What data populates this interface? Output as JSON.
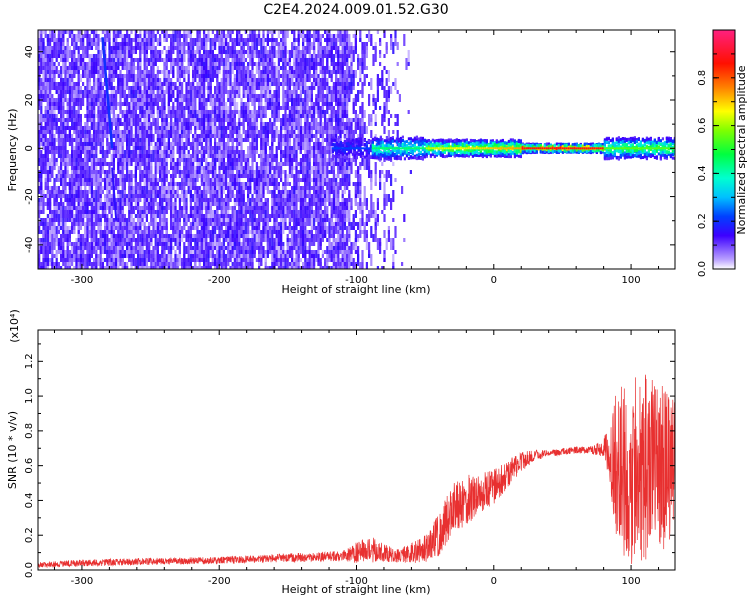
{
  "title": "C2E4.2024.009.01.52.G30",
  "chart_data": [
    {
      "type": "heatmap",
      "xlabel": "Height of straight line (km)",
      "ylabel": "Frequency (Hz)",
      "xlim": [
        -332,
        132
      ],
      "ylim": [
        -50,
        49
      ],
      "xticks": [
        -300,
        -200,
        -100,
        0,
        100
      ],
      "xtick_labels": [
        "-300",
        "-200",
        "-100",
        "0",
        "100"
      ],
      "yticks": [
        -40,
        -20,
        0,
        20,
        40
      ],
      "ytick_labels": [
        "-40",
        "-20",
        "0",
        "20",
        "40"
      ],
      "colorbar": {
        "label": "Normalized spectral amplitude",
        "range": [
          0,
          1
        ],
        "ticks": [
          0.0,
          0.2,
          0.4,
          0.6,
          0.8
        ],
        "tick_labels": [
          "0.0",
          "0.2",
          "0.4",
          "0.6",
          "0.8"
        ]
      },
      "features": {
        "broadband_noise_x": [
          -332,
          -105
        ],
        "fading_noise_x": [
          -105,
          -60
        ],
        "signal_line_frequency": 0,
        "signal_onset_x": -118,
        "strong_signal_x": [
          20,
          80
        ],
        "diagonal_streak": {
          "x": [
            -285,
            -278
          ],
          "y": [
            46,
            0
          ]
        }
      },
      "grid": false
    },
    {
      "type": "line",
      "xlabel": "Height of straight line (km)",
      "ylabel": "SNR (10 * v/v)",
      "y_multiplier": "(x10⁴)",
      "xlim": [
        -332,
        132
      ],
      "ylim": [
        0,
        1.38
      ],
      "xticks": [
        -300,
        -200,
        -100,
        0,
        100
      ],
      "xtick_labels": [
        "-300",
        "-200",
        "-100",
        "0",
        "100"
      ],
      "yticks": [
        0.0,
        0.2,
        0.4,
        0.6,
        0.8,
        1.0,
        1.2
      ],
      "ytick_labels": [
        "0.0",
        "0.2",
        "0.4",
        "0.6",
        "0.8",
        "1.0",
        "1.2"
      ],
      "series": [
        {
          "color": "#e83030",
          "x": [
            -332,
            -300,
            -250,
            -200,
            -150,
            -110,
            -100,
            -90,
            -80,
            -70,
            -60,
            -50,
            -40,
            -30,
            -20,
            -10,
            0,
            10,
            20,
            30,
            40,
            50,
            60,
            70,
            80,
            90,
            100,
            110,
            120,
            132
          ],
          "y": [
            0.03,
            0.04,
            0.05,
            0.055,
            0.07,
            0.08,
            0.1,
            0.12,
            0.1,
            0.08,
            0.1,
            0.12,
            0.2,
            0.35,
            0.4,
            0.45,
            0.48,
            0.55,
            0.62,
            0.66,
            0.67,
            0.68,
            0.69,
            0.69,
            0.7,
            0.6,
            0.55,
            0.6,
            0.58,
            0.6
          ],
          "noise_amplitude": [
            0.015,
            0.02,
            0.02,
            0.02,
            0.025,
            0.03,
            0.06,
            0.08,
            0.06,
            0.04,
            0.06,
            0.08,
            0.12,
            0.15,
            0.15,
            0.12,
            0.1,
            0.08,
            0.06,
            0.03,
            0.02,
            0.02,
            0.02,
            0.02,
            0.05,
            0.45,
            0.55,
            0.55,
            0.5,
            0.4
          ]
        }
      ],
      "grid": false
    }
  ]
}
